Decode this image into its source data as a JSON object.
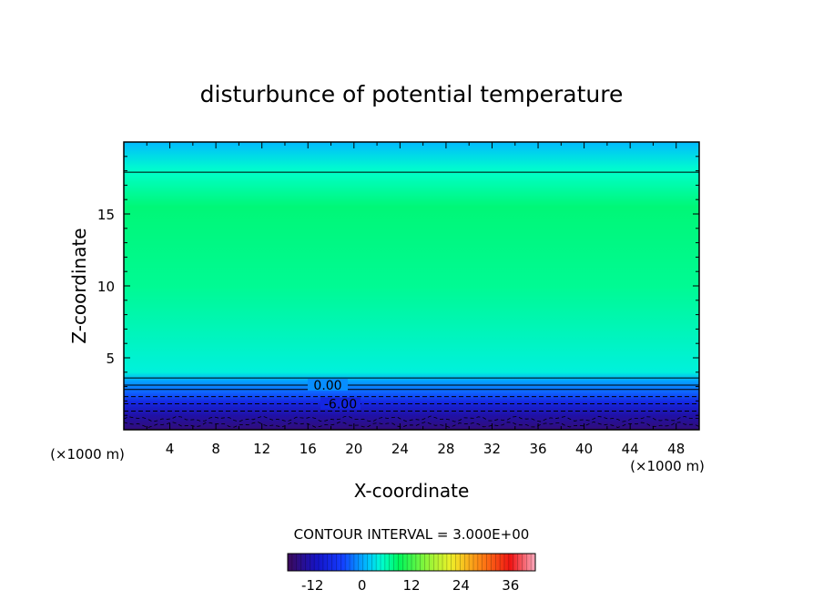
{
  "chart_data": {
    "type": "heatmap",
    "title": "disturbunce of potential temperature",
    "xlabel": "X-coordinate",
    "ylabel": "Z-coordinate",
    "x_unit": "(×1000 m)",
    "z_unit": "(×1000 m)",
    "xlim": [
      0,
      50
    ],
    "ylim": [
      0,
      20
    ],
    "x_ticks": [
      "4",
      "8",
      "12",
      "16",
      "20",
      "24",
      "28",
      "32",
      "36",
      "40",
      "44",
      "48"
    ],
    "y_ticks": [
      "5",
      "10",
      "15"
    ],
    "contour_interval_text": "CONTOUR INTERVAL = 3.000E+00",
    "contour_interval": 3.0,
    "contour_labels": [
      "0.00",
      "-6.00"
    ],
    "colorbar": {
      "range": [
        -18,
        42
      ],
      "tick_labels": [
        "-12",
        "0",
        "12",
        "24",
        "36"
      ]
    },
    "field_profile": [
      {
        "z": 0.0,
        "value": -16
      },
      {
        "z": 1.0,
        "value": -13
      },
      {
        "z": 1.9,
        "value": -8
      },
      {
        "z": 2.6,
        "value": -3
      },
      {
        "z": 3.4,
        "value": 0
      },
      {
        "z": 4.0,
        "value": 4
      },
      {
        "z": 10.0,
        "value": 7
      },
      {
        "z": 15.5,
        "value": 8
      },
      {
        "z": 18.0,
        "value": 5
      },
      {
        "z": 20.0,
        "value": 1
      }
    ],
    "contour_levels_z": [
      {
        "z": 17.9,
        "style": "solid"
      },
      {
        "z": 3.6,
        "style": "solid"
      },
      {
        "z": 3.1,
        "style": "solid"
      },
      {
        "z": 2.8,
        "style": "solid"
      },
      {
        "z": 2.3,
        "style": "dashed"
      },
      {
        "z": 1.8,
        "style": "dashed"
      },
      {
        "z": 1.3,
        "style": "dashed"
      }
    ],
    "colors": {
      "frame": "#000000",
      "contour": "#000000"
    }
  }
}
